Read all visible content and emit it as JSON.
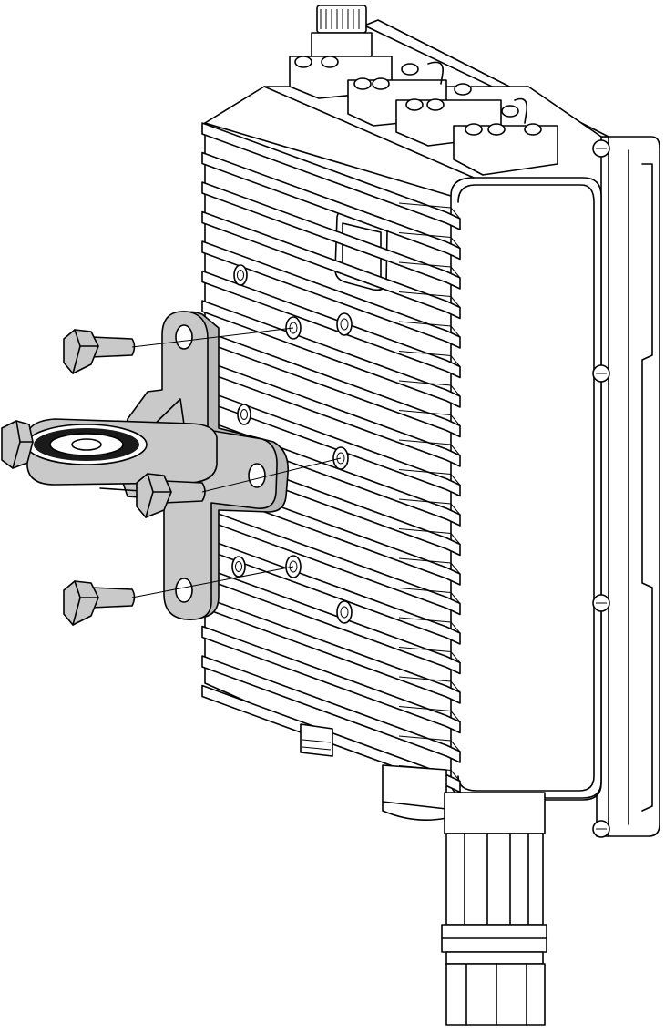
{
  "figure": {
    "colors": {
      "outline": "#000000",
      "background": "#ffffff",
      "bracket": "#c9c9c9",
      "bracket_shadow": "#b9b9b9"
    },
    "parts": [
      {
        "icon": "enclosure-icon"
      },
      {
        "icon": "heatsink-fins-icon"
      },
      {
        "icon": "connector-icon"
      },
      {
        "icon": "cable-gland-icon"
      },
      {
        "icon": "mounting-bracket-icon"
      },
      {
        "icon": "bolt-icon"
      },
      {
        "icon": "cover-screw-icon"
      }
    ]
  }
}
